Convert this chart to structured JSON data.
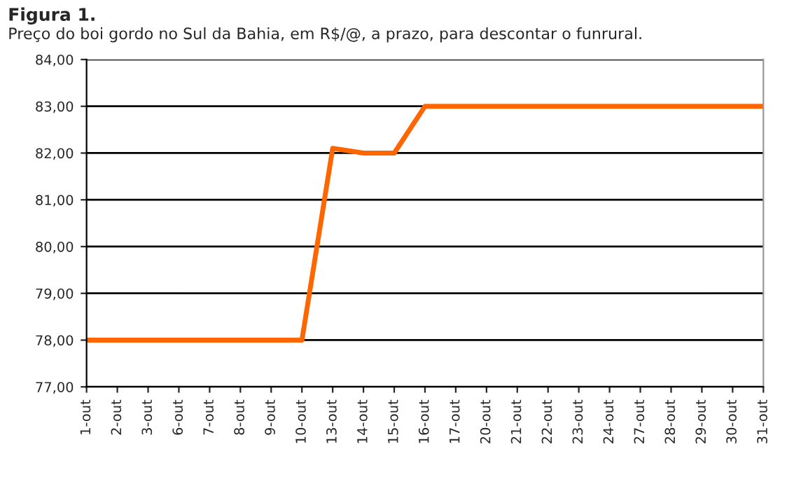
{
  "chart_data": {
    "type": "line",
    "title": "Figura 1.",
    "subtitle": "Preço do boi gordo no Sul da Bahia, em R$/@, a prazo, para descontar o funrural.",
    "categories": [
      "1-out",
      "2-out",
      "3-out",
      "6-out",
      "7-out",
      "8-out",
      "9-out",
      "10-out",
      "13-out",
      "14-out",
      "15-out",
      "16-out",
      "17-out",
      "20-out",
      "21-out",
      "22-out",
      "23-out",
      "24-out",
      "27-out",
      "28-out",
      "29-out",
      "30-out",
      "31-out"
    ],
    "series": [
      {
        "color": "#ff6600",
        "values": [
          78.0,
          78.0,
          78.0,
          78.0,
          78.0,
          78.0,
          78.0,
          78.0,
          82.1,
          82.0,
          82.0,
          83.0,
          83.0,
          83.0,
          83.0,
          83.0,
          83.0,
          83.0,
          83.0,
          83.0,
          83.0,
          83.0,
          83.0
        ]
      }
    ],
    "ylim": [
      77,
      84
    ],
    "yticks": [
      {
        "value": 77,
        "label": "77,00"
      },
      {
        "value": 78,
        "label": "78,00"
      },
      {
        "value": 79,
        "label": "79,00"
      },
      {
        "value": 80,
        "label": "80,00"
      },
      {
        "value": 81,
        "label": "81,00"
      },
      {
        "value": 82,
        "label": "82,00"
      },
      {
        "value": 83,
        "label": "83,00"
      },
      {
        "value": 84,
        "label": "84,00"
      }
    ],
    "grid": "y",
    "legend": false,
    "line_style": "solid",
    "marker": "none"
  }
}
